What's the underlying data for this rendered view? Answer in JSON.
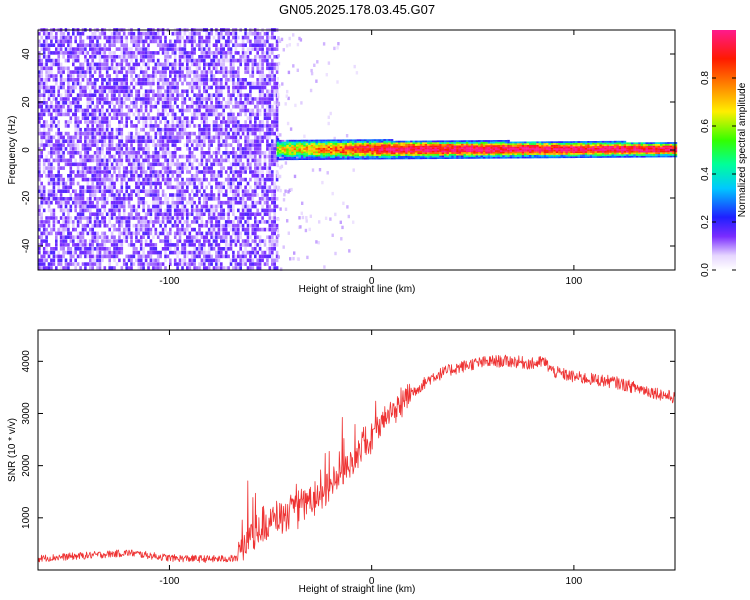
{
  "title": "GN05.2025.178.03.45.G07",
  "chart_data": [
    {
      "type": "heatmap",
      "xlabel": "Height of straight line (km)",
      "ylabel": "Frequency (Hz)",
      "xlim": [
        -165,
        150
      ],
      "ylim": [
        -50,
        50
      ],
      "xticks": [
        -100,
        0,
        100
      ],
      "yticks": [
        -40,
        -20,
        0,
        20,
        40
      ],
      "noise_region_x": [
        -165,
        -47
      ],
      "signal_start_x": -47,
      "signal_frequency": 0,
      "colorbar": {
        "label": "Normalized spectral amplitude",
        "range": [
          0,
          1
        ],
        "ticks": [
          0.0,
          0.2,
          0.4,
          0.6,
          0.8
        ]
      }
    },
    {
      "type": "line",
      "xlabel": "Height of straight line (km)",
      "ylabel": "SNR (10 * v/v)",
      "xlim": [
        -165,
        150
      ],
      "ylim": [
        0,
        4600
      ],
      "xticks": [
        -100,
        0,
        100
      ],
      "yticks": [
        1000,
        2000,
        3000,
        4000
      ],
      "color": "#ee3333",
      "series": [
        {
          "x": [
            -165,
            -140,
            -120,
            -100,
            -80,
            -66,
            -65,
            -55,
            -45,
            -35,
            -25,
            -15,
            -10,
            -5,
            0,
            10,
            20,
            30,
            40,
            50,
            60,
            70,
            80,
            85,
            90,
            100,
            110,
            120,
            130,
            140,
            150
          ],
          "values": [
            220,
            280,
            330,
            230,
            210,
            220,
            500,
            850,
            1000,
            1200,
            1500,
            1800,
            2100,
            2350,
            2600,
            3050,
            3400,
            3700,
            3850,
            3950,
            4000,
            4000,
            3950,
            4000,
            3800,
            3700,
            3650,
            3600,
            3500,
            3400,
            3300
          ]
        }
      ]
    }
  ]
}
